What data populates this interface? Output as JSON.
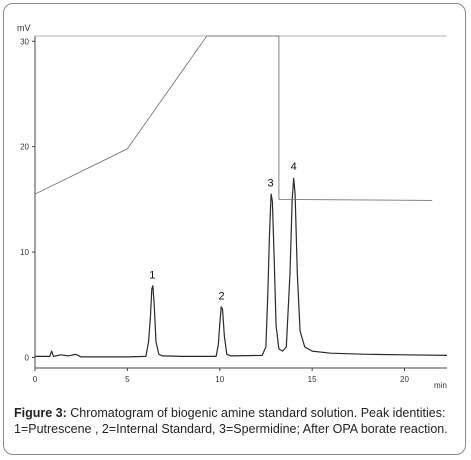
{
  "chart_data": {
    "type": "line",
    "title": "",
    "ylabel": "mV",
    "xlabel": "min",
    "xlim": [
      0,
      22.3
    ],
    "ylim": [
      -1,
      30.5
    ],
    "x_ticks": [
      0,
      5,
      10,
      15,
      20
    ],
    "y_ticks": [
      0,
      10,
      20,
      30
    ],
    "grid": false,
    "series": [
      {
        "role": "chromatogram",
        "points": [
          [
            0,
            0.1
          ],
          [
            0.8,
            0.1
          ],
          [
            0.9,
            0.6
          ],
          [
            1.0,
            0.1
          ],
          [
            1.4,
            0.25
          ],
          [
            1.8,
            0.15
          ],
          [
            2.2,
            0.3
          ],
          [
            2.5,
            0.05
          ],
          [
            3.5,
            0.05
          ],
          [
            5.0,
            0.05
          ],
          [
            6.0,
            0.1
          ],
          [
            6.15,
            1.5
          ],
          [
            6.25,
            4.0
          ],
          [
            6.32,
            6.5
          ],
          [
            6.38,
            6.8
          ],
          [
            6.45,
            5.0
          ],
          [
            6.55,
            1.5
          ],
          [
            6.7,
            0.3
          ],
          [
            6.9,
            0.15
          ],
          [
            8.0,
            0.1
          ],
          [
            9.8,
            0.1
          ],
          [
            9.92,
            1.2
          ],
          [
            10.0,
            3.2
          ],
          [
            10.08,
            4.8
          ],
          [
            10.15,
            4.6
          ],
          [
            10.25,
            2.0
          ],
          [
            10.38,
            0.3
          ],
          [
            10.6,
            0.15
          ],
          [
            12.3,
            0.2
          ],
          [
            12.5,
            1.0
          ],
          [
            12.6,
            6.0
          ],
          [
            12.7,
            12.0
          ],
          [
            12.78,
            15.5
          ],
          [
            12.85,
            14.8
          ],
          [
            12.95,
            9.0
          ],
          [
            13.05,
            3.0
          ],
          [
            13.2,
            0.8
          ],
          [
            13.4,
            0.6
          ],
          [
            13.6,
            1.0
          ],
          [
            13.8,
            8.0
          ],
          [
            13.92,
            15.0
          ],
          [
            14.0,
            17.0
          ],
          [
            14.08,
            15.5
          ],
          [
            14.2,
            8.0
          ],
          [
            14.35,
            2.5
          ],
          [
            14.6,
            1.0
          ],
          [
            15.0,
            0.6
          ],
          [
            16.0,
            0.4
          ],
          [
            18.0,
            0.3
          ],
          [
            20.0,
            0.25
          ],
          [
            22.3,
            0.2
          ]
        ]
      },
      {
        "role": "gradient program",
        "points": [
          [
            0,
            15.5
          ],
          [
            5,
            19.8
          ],
          [
            9.3,
            30.5
          ],
          [
            13.2,
            30.5
          ],
          [
            13.2,
            15.0
          ],
          [
            21.5,
            14.9
          ]
        ]
      }
    ],
    "annotations": [
      {
        "text": "1",
        "x": 6.35,
        "y": 7.5
      },
      {
        "text": "2",
        "x": 10.1,
        "y": 5.5
      },
      {
        "text": "3",
        "x": 12.75,
        "y": 16.2
      },
      {
        "text": "4",
        "x": 14.0,
        "y": 17.8
      }
    ]
  },
  "caption": {
    "label": "Figure 3:",
    "text": " Chromatogram of biogenic amine standard solution. Peak identities: 1=Putrescene , 2=Internal Standard, 3=Spermidine; After OPA borate reaction."
  }
}
